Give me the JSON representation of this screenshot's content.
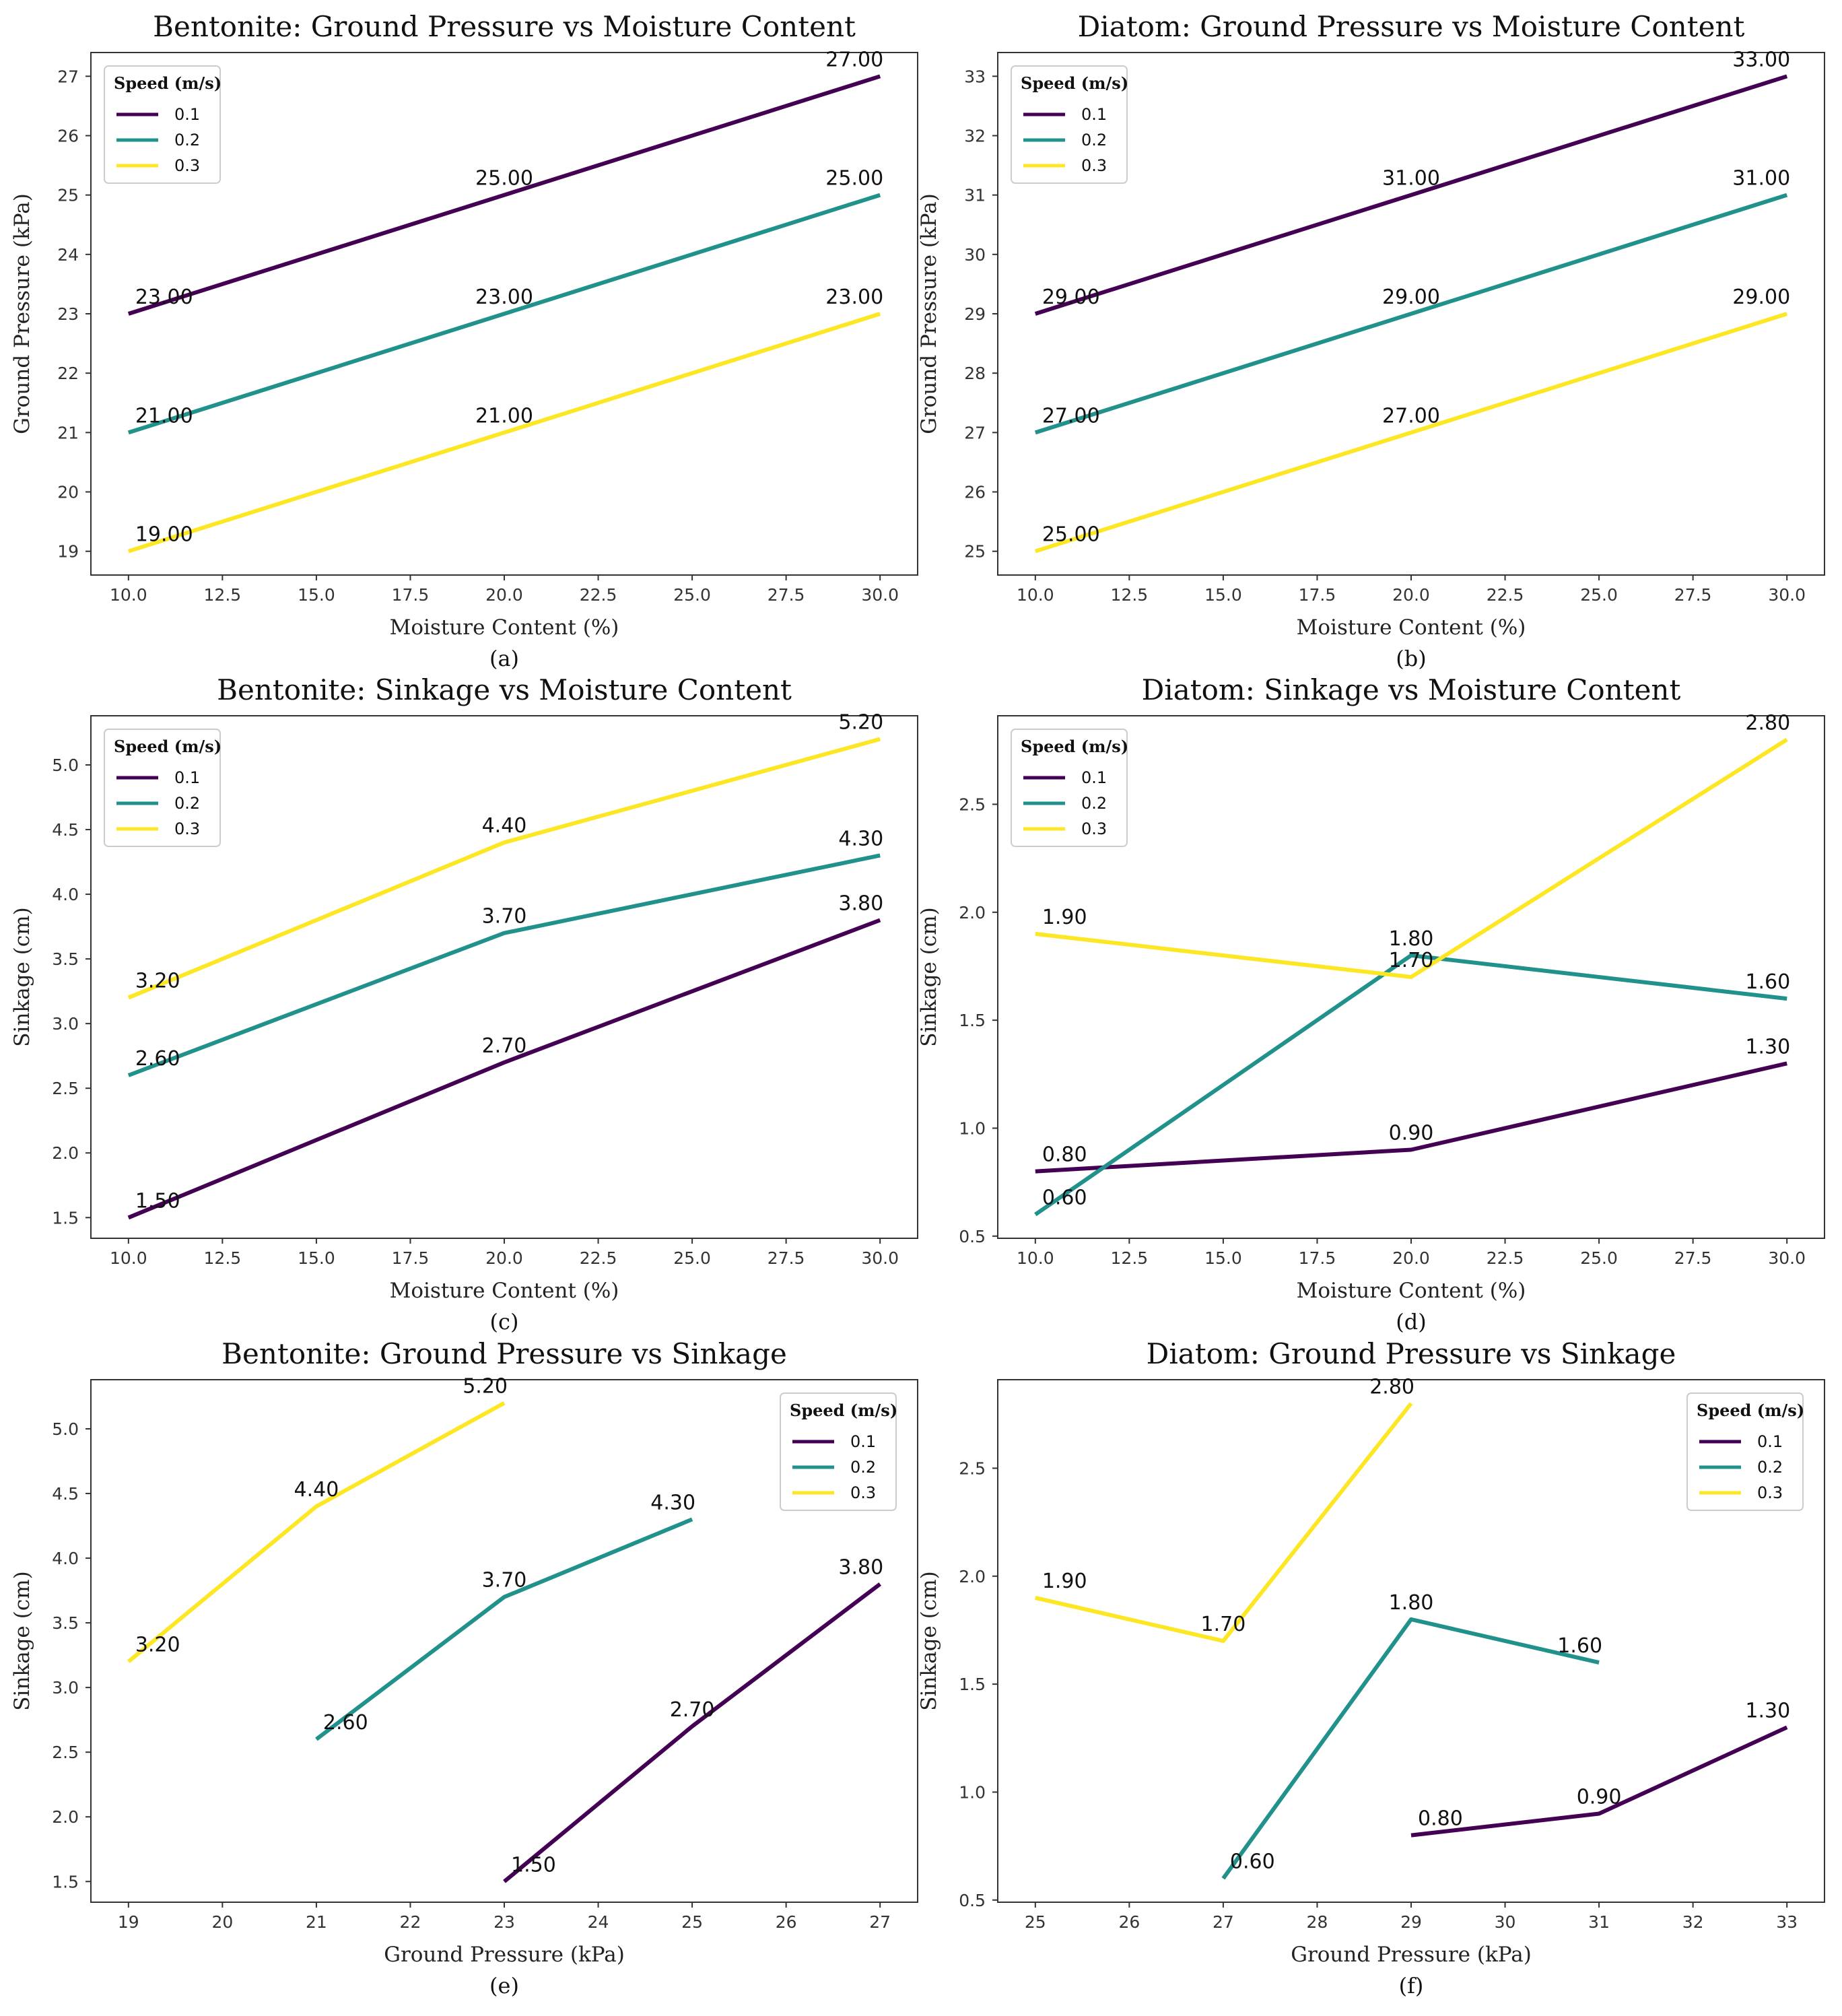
{
  "legend_title": "Speed (m/s)",
  "colors": {
    "0.1": "#440154",
    "0.2": "#21918c",
    "0.3": "#fde725"
  },
  "chart_data": [
    {
      "type": "line",
      "caption": "(a)",
      "title": "Bentonite: Ground Pressure vs Moisture Content",
      "xlabel": "Moisture Content (%)",
      "ylabel": "Ground Pressure (kPa)",
      "xlim": [
        9.0,
        31.0
      ],
      "ylim": [
        18.6,
        27.4
      ],
      "xticks": [
        10,
        12.5,
        15,
        17.5,
        20,
        22.5,
        25,
        27.5,
        30
      ],
      "xtick_labels": [
        "10.0",
        "12.5",
        "15.0",
        "17.5",
        "20.0",
        "22.5",
        "25.0",
        "27.5",
        "30.0"
      ],
      "yticks": [
        19,
        20,
        21,
        22,
        23,
        24,
        25,
        26,
        27
      ],
      "ytick_labels": [
        "19",
        "20",
        "21",
        "22",
        "23",
        "24",
        "25",
        "26",
        "27"
      ],
      "legend_position": "upper-left",
      "series": [
        {
          "name": "0.1",
          "x": [
            10,
            20,
            30
          ],
          "y": [
            23,
            25,
            27
          ],
          "labels": [
            "23.00",
            "25.00",
            "27.00"
          ]
        },
        {
          "name": "0.2",
          "x": [
            10,
            20,
            30
          ],
          "y": [
            21,
            23,
            25
          ],
          "labels": [
            "21.00",
            "23.00",
            "25.00"
          ]
        },
        {
          "name": "0.3",
          "x": [
            10,
            20,
            30
          ],
          "y": [
            19,
            21,
            23
          ],
          "labels": [
            "19.00",
            "21.00",
            "23.00"
          ]
        }
      ]
    },
    {
      "type": "line",
      "caption": "(b)",
      "title": "Diatom: Ground Pressure vs Moisture Content",
      "xlabel": "Moisture Content (%)",
      "ylabel": "Ground Pressure (kPa)",
      "xlim": [
        9.0,
        31.0
      ],
      "ylim": [
        24.6,
        33.4
      ],
      "xticks": [
        10,
        12.5,
        15,
        17.5,
        20,
        22.5,
        25,
        27.5,
        30
      ],
      "xtick_labels": [
        "10.0",
        "12.5",
        "15.0",
        "17.5",
        "20.0",
        "22.5",
        "25.0",
        "27.5",
        "30.0"
      ],
      "yticks": [
        25,
        26,
        27,
        28,
        29,
        30,
        31,
        32,
        33
      ],
      "ytick_labels": [
        "25",
        "26",
        "27",
        "28",
        "29",
        "30",
        "31",
        "32",
        "33"
      ],
      "legend_position": "upper-left",
      "series": [
        {
          "name": "0.1",
          "x": [
            10,
            20,
            30
          ],
          "y": [
            29,
            31,
            33
          ],
          "labels": [
            "29.00",
            "31.00",
            "33.00"
          ]
        },
        {
          "name": "0.2",
          "x": [
            10,
            20,
            30
          ],
          "y": [
            27,
            29,
            31
          ],
          "labels": [
            "27.00",
            "29.00",
            "31.00"
          ]
        },
        {
          "name": "0.3",
          "x": [
            10,
            20,
            30
          ],
          "y": [
            25,
            27,
            29
          ],
          "labels": [
            "25.00",
            "27.00",
            "29.00"
          ]
        }
      ]
    },
    {
      "type": "line",
      "caption": "(c)",
      "title": "Bentonite: Sinkage vs Moisture Content",
      "xlabel": "Moisture Content (%)",
      "ylabel": "Sinkage (cm)",
      "xlim": [
        9.0,
        31.0
      ],
      "ylim": [
        1.34,
        5.38
      ],
      "xticks": [
        10,
        12.5,
        15,
        17.5,
        20,
        22.5,
        25,
        27.5,
        30
      ],
      "xtick_labels": [
        "10.0",
        "12.5",
        "15.0",
        "17.5",
        "20.0",
        "22.5",
        "25.0",
        "27.5",
        "30.0"
      ],
      "yticks": [
        1.5,
        2.0,
        2.5,
        3.0,
        3.5,
        4.0,
        4.5,
        5.0
      ],
      "ytick_labels": [
        "1.5",
        "2.0",
        "2.5",
        "3.0",
        "3.5",
        "4.0",
        "4.5",
        "5.0"
      ],
      "legend_position": "upper-left",
      "series": [
        {
          "name": "0.1",
          "x": [
            10,
            20,
            30
          ],
          "y": [
            1.5,
            2.7,
            3.8
          ],
          "labels": [
            "1.50",
            "2.70",
            "3.80"
          ]
        },
        {
          "name": "0.2",
          "x": [
            10,
            20,
            30
          ],
          "y": [
            2.6,
            3.7,
            4.3
          ],
          "labels": [
            "2.60",
            "3.70",
            "4.30"
          ]
        },
        {
          "name": "0.3",
          "x": [
            10,
            20,
            30
          ],
          "y": [
            3.2,
            4.4,
            5.2
          ],
          "labels": [
            "3.20",
            "4.40",
            "5.20"
          ]
        }
      ]
    },
    {
      "type": "line",
      "caption": "(d)",
      "title": "Diatom: Sinkage vs Moisture Content",
      "xlabel": "Moisture Content (%)",
      "ylabel": "Sinkage (cm)",
      "xlim": [
        9.0,
        31.0
      ],
      "ylim": [
        0.49,
        2.91
      ],
      "xticks": [
        10,
        12.5,
        15,
        17.5,
        20,
        22.5,
        25,
        27.5,
        30
      ],
      "xtick_labels": [
        "10.0",
        "12.5",
        "15.0",
        "17.5",
        "20.0",
        "22.5",
        "25.0",
        "27.5",
        "30.0"
      ],
      "yticks": [
        0.5,
        1.0,
        1.5,
        2.0,
        2.5
      ],
      "ytick_labels": [
        "0.5",
        "1.0",
        "1.5",
        "2.0",
        "2.5"
      ],
      "legend_position": "upper-left",
      "series": [
        {
          "name": "0.1",
          "x": [
            10,
            20,
            30
          ],
          "y": [
            0.8,
            0.9,
            1.3
          ],
          "labels": [
            "0.80",
            "0.90",
            "1.30"
          ]
        },
        {
          "name": "0.2",
          "x": [
            10,
            20,
            30
          ],
          "y": [
            0.6,
            1.8,
            1.6
          ],
          "labels": [
            "0.60",
            "1.80",
            "1.60"
          ]
        },
        {
          "name": "0.3",
          "x": [
            10,
            20,
            30
          ],
          "y": [
            1.9,
            1.7,
            2.8
          ],
          "labels": [
            "1.90",
            "1.70",
            "2.80"
          ]
        }
      ]
    },
    {
      "type": "line",
      "caption": "(e)",
      "title": "Bentonite: Ground Pressure vs Sinkage",
      "xlabel": "Ground Pressure (kPa)",
      "ylabel": "Sinkage (cm)",
      "xlim": [
        18.6,
        27.4
      ],
      "ylim": [
        1.34,
        5.38
      ],
      "xticks": [
        19,
        20,
        21,
        22,
        23,
        24,
        25,
        26,
        27
      ],
      "xtick_labels": [
        "19",
        "20",
        "21",
        "22",
        "23",
        "24",
        "25",
        "26",
        "27"
      ],
      "yticks": [
        1.5,
        2.0,
        2.5,
        3.0,
        3.5,
        4.0,
        4.5,
        5.0
      ],
      "ytick_labels": [
        "1.5",
        "2.0",
        "2.5",
        "3.0",
        "3.5",
        "4.0",
        "4.5",
        "5.0"
      ],
      "legend_position": "upper-right",
      "series": [
        {
          "name": "0.1",
          "x": [
            23,
            25,
            27
          ],
          "y": [
            1.5,
            2.7,
            3.8
          ],
          "labels": [
            "1.50",
            "2.70",
            "3.80"
          ]
        },
        {
          "name": "0.2",
          "x": [
            21,
            23,
            25
          ],
          "y": [
            2.6,
            3.7,
            4.3
          ],
          "labels": [
            "2.60",
            "3.70",
            "4.30"
          ]
        },
        {
          "name": "0.3",
          "x": [
            19,
            21,
            23
          ],
          "y": [
            3.2,
            4.4,
            5.2
          ],
          "labels": [
            "3.20",
            "4.40",
            "5.20"
          ]
        }
      ]
    },
    {
      "type": "line",
      "caption": "(f)",
      "title": "Diatom: Ground Pressure vs Sinkage",
      "xlabel": "Ground Pressure (kPa)",
      "ylabel": "Sinkage (cm)",
      "xlim": [
        24.6,
        33.4
      ],
      "ylim": [
        0.49,
        2.91
      ],
      "xticks": [
        25,
        26,
        27,
        28,
        29,
        30,
        31,
        32,
        33
      ],
      "xtick_labels": [
        "25",
        "26",
        "27",
        "28",
        "29",
        "30",
        "31",
        "32",
        "33"
      ],
      "yticks": [
        0.5,
        1.0,
        1.5,
        2.0,
        2.5
      ],
      "ytick_labels": [
        "0.5",
        "1.0",
        "1.5",
        "2.0",
        "2.5"
      ],
      "legend_position": "upper-right",
      "series": [
        {
          "name": "0.1",
          "x": [
            29,
            31,
            33
          ],
          "y": [
            0.8,
            0.9,
            1.3
          ],
          "labels": [
            "0.80",
            "0.90",
            "1.30"
          ]
        },
        {
          "name": "0.2",
          "x": [
            27,
            29,
            31
          ],
          "y": [
            0.6,
            1.8,
            1.6
          ],
          "labels": [
            "0.60",
            "1.80",
            "1.60"
          ]
        },
        {
          "name": "0.3",
          "x": [
            25,
            27,
            29
          ],
          "y": [
            1.9,
            1.7,
            2.8
          ],
          "labels": [
            "1.90",
            "1.70",
            "2.80"
          ]
        }
      ]
    }
  ]
}
